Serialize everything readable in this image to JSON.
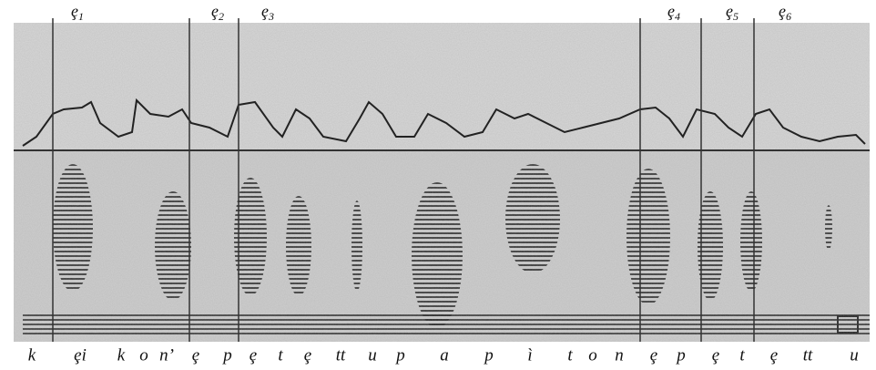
{
  "top_labels": [
    {
      "letter": "ȩ",
      "index": "1"
    },
    {
      "letter": "ȩ",
      "index": "2"
    },
    {
      "letter": "ȩ",
      "index": "3"
    },
    {
      "letter": "ȩ",
      "index": "4"
    },
    {
      "letter": "ȩ",
      "index": "5"
    },
    {
      "letter": "ȩ",
      "index": "6"
    }
  ],
  "transcription": [
    "k",
    "ȩi",
    "k",
    "o",
    "n’",
    "ȩ",
    "p",
    "ȩ",
    "t",
    "ȩ",
    "tt",
    "u",
    "p",
    "a",
    "p",
    "ì",
    "t",
    "o",
    "n",
    "ȩ",
    "p",
    "ȩ",
    "t",
    "ȩ",
    "tt",
    "u"
  ]
}
